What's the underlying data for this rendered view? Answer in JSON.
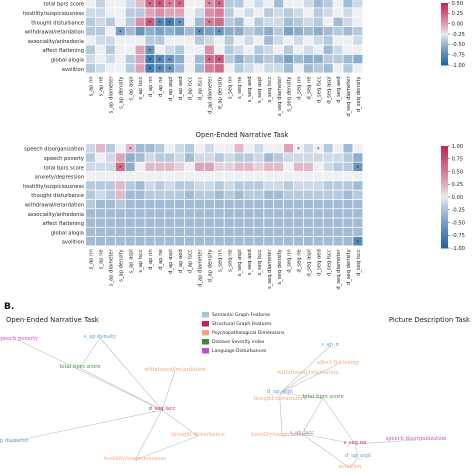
{
  "panel_b_label": "B.",
  "chart_data": [
    {
      "type": "heatmap",
      "title": "",
      "rows": [
        "total bprs score",
        "hostility/suspiciousness",
        "thought disturbance",
        "withdrawal/retardation",
        "associality/anhedonia",
        "affect flattening",
        "global alogia",
        "avolition"
      ],
      "columns": [
        "s_ap nn",
        "s_ap ne",
        "s_ap diameter",
        "s_ap density",
        "s_ap aspl",
        "s_ap lscc",
        "d_ap nn",
        "d_ap ne",
        "d_ap aspl",
        "d_ap aed",
        "d_ap lscc",
        "d_ap lscc",
        "d_ap diameter",
        "d_ap density",
        "s_seq nn",
        "s_seq ne",
        "s_seq aed",
        "s_seq aspl",
        "s_seq lscc",
        "s_seq diameter",
        "s_seq density",
        "d_seq nn",
        "d_seq ne",
        "d_seq lscc",
        "d_seq aspl",
        "d_seq aed",
        "d_seq diameter",
        "d_seq density"
      ],
      "values": [
        [
          0,
          -0.15,
          0,
          0,
          -0.1,
          0.2,
          0.6,
          0.7,
          0.5,
          0.6,
          0,
          0,
          0.4,
          0.6,
          -0.2,
          -0.2,
          0,
          -0.1,
          0,
          -0.3,
          0,
          0,
          -0.1,
          -0.3,
          -0.2,
          0,
          -0.3,
          -0.1
        ],
        [
          -0.1,
          -0.1,
          0,
          0,
          -0.2,
          -0.2,
          0.3,
          0.4,
          0.3,
          0.3,
          0,
          -0.1,
          0.4,
          0.5,
          -0.2,
          0,
          -0.1,
          0,
          -0.2,
          -0.1,
          -0.2,
          -0.1,
          0,
          -0.2,
          -0.1,
          0,
          -0.1,
          0
        ],
        [
          -0.2,
          -0.1,
          -0.2,
          0,
          -0.2,
          0.4,
          0.7,
          -0.7,
          -0.8,
          -0.6,
          0,
          -0.3,
          0.5,
          0.6,
          -0.2,
          -0.3,
          0,
          -0.2,
          -0.1,
          -0.1,
          -0.3,
          -0.2,
          -0.1,
          -0.2,
          0,
          -0.3,
          -0.1,
          0
        ],
        [
          -0.2,
          -0.2,
          0,
          -0.5,
          -0.3,
          -0.6,
          -0.4,
          -0.5,
          -0.4,
          -0.5,
          -0.3,
          -0.6,
          -0.5,
          -0.6,
          -0.4,
          -0.4,
          -0.2,
          -0.3,
          -0.4,
          -0.2,
          -0.5,
          -0.4,
          -0.3,
          -0.4,
          -0.3,
          -0.2,
          -0.3,
          -0.2
        ],
        [
          0,
          -0.1,
          -0.1,
          0,
          0,
          0,
          -0.2,
          -0.2,
          0,
          0,
          0,
          -0.2,
          -0.1,
          0,
          -0.2,
          0,
          -0.1,
          0,
          -0.3,
          -0.1,
          0,
          -0.1,
          0,
          -0.1,
          -0.2,
          0,
          0,
          -0.1
        ],
        [
          -0.2,
          0,
          -0.2,
          0,
          0,
          0.3,
          -0.6,
          0,
          -0.1,
          -0.2,
          0,
          0,
          0.4,
          0,
          -0.2,
          -0.1,
          0,
          -0.2,
          -0.1,
          0,
          -0.2,
          0,
          -0.1,
          0,
          -0.3,
          -0.1,
          0,
          0
        ],
        [
          -0.1,
          0,
          -0.1,
          0,
          -0.2,
          0.3,
          -0.8,
          -0.7,
          -0.6,
          -0.4,
          0,
          -0.3,
          0.6,
          0.7,
          -0.2,
          -0.4,
          -0.2,
          -0.3,
          -0.2,
          -0.3,
          -0.5,
          -0.3,
          -0.4,
          -0.4,
          -0.2,
          -0.2,
          -0.3,
          -0.4
        ],
        [
          -0.2,
          -0.1,
          0,
          0,
          -0.2,
          0.3,
          -0.8,
          -0.7,
          -0.6,
          -0.3,
          0,
          -0.3,
          0.5,
          0.6,
          0,
          -0.2,
          -0.1,
          0,
          -0.1,
          -0.1,
          -0.3,
          0,
          -0.3,
          -0.2,
          -0.3,
          0,
          -0.2,
          0
        ]
      ],
      "stars": [
        [
          6,
          0
        ],
        [
          7,
          0
        ],
        [
          8,
          0
        ],
        [
          9,
          0
        ],
        [
          12,
          0
        ],
        [
          13,
          0
        ],
        [
          6,
          2
        ],
        [
          7,
          2
        ],
        [
          8,
          2
        ],
        [
          9,
          2
        ],
        [
          12,
          2
        ],
        [
          3,
          3
        ],
        [
          11,
          3
        ],
        [
          13,
          3
        ],
        [
          6,
          5
        ],
        [
          6,
          6
        ],
        [
          7,
          6
        ],
        [
          8,
          6
        ],
        [
          12,
          6
        ],
        [
          13,
          6
        ],
        [
          6,
          7
        ],
        [
          7,
          7
        ],
        [
          8,
          7
        ]
      ],
      "colorbar": {
        "ticks": [
          "0.50",
          "0.25",
          "0.00",
          "-0.25",
          "-0.50",
          "-0.75",
          "-1.00"
        ],
        "range": [
          -1,
          1
        ]
      }
    },
    {
      "type": "heatmap",
      "title": "Open-Ended Narrative Task",
      "rows": [
        "speech disorganization",
        "speech poverty",
        "total bprs score",
        "anxiety/depression",
        "hostility/suspiciousness",
        "thought disturbance",
        "withdrawal/retardation",
        "associality/anhedonia",
        "affect flattening",
        "global alogia",
        "avolition"
      ],
      "columns": [
        "s_ap nn",
        "s_ap ne",
        "s_ap diameter",
        "s_ap density",
        "s_ap aspl",
        "s_ap lscc",
        "d_ap nn",
        "d_ap ne",
        "d_ap aspl",
        "d_ap aed",
        "d_ap lscc",
        "d_ap diameter",
        "d_ap density",
        "s_seq nn",
        "s_seq ne",
        "s_seq aspl",
        "s_seq aed",
        "s_seq lscc",
        "s_seq diameter",
        "s_seq density",
        "d_seq nn",
        "d_seq ne",
        "d_seq aspl",
        "d_seq aed",
        "d_seq lscc",
        "d_seq diameter",
        "d_seq density",
        "d_seq lscc"
      ],
      "values": [
        [
          -0.1,
          0.2,
          -0.2,
          0,
          0.2,
          -0.3,
          -0.3,
          -0.2,
          0,
          -0.1,
          -0.2,
          0,
          -0.1,
          0,
          0,
          0.2,
          0,
          -0.1,
          0,
          0,
          0.3,
          0,
          -0.1,
          0,
          -0.2,
          0,
          -0.3,
          0
        ],
        [
          -0.2,
          0,
          -0.1,
          0.3,
          -0.4,
          -0.3,
          -0.1,
          -0.2,
          -0.2,
          -0.1,
          -0.3,
          -0.1,
          -0.1,
          -0.2,
          -0.1,
          -0.2,
          -0.2,
          -0.1,
          -0.3,
          -0.2,
          -0.1,
          -0.1,
          -0.1,
          -0.1,
          -0.1,
          -0.1,
          -0.2,
          -0.4
        ],
        [
          -0.1,
          -0.1,
          -0.1,
          0.6,
          -0.4,
          0,
          0.2,
          0.2,
          0.2,
          0.1,
          0,
          0.3,
          0.3,
          0.1,
          0.1,
          0.2,
          0.2,
          0.1,
          0.2,
          0.2,
          0,
          0.2,
          0.2,
          0,
          -0.1,
          -0.2,
          -0.2,
          -0.6
        ],
        [
          0,
          0,
          0,
          0,
          0,
          0,
          0,
          0,
          0,
          0,
          0,
          0,
          0,
          0,
          0,
          0,
          0,
          0,
          0,
          0,
          0,
          0,
          0,
          0,
          0,
          0,
          0,
          0
        ],
        [
          -0.2,
          -0.2,
          -0.2,
          0.2,
          -0.2,
          -0.3,
          -0.1,
          -0.2,
          -0.1,
          -0.2,
          -0.2,
          -0.1,
          -0.1,
          -0.2,
          -0.1,
          -0.2,
          -0.2,
          -0.2,
          -0.1,
          -0.1,
          -0.2,
          -0.1,
          -0.1,
          -0.1,
          -0.2,
          -0.2,
          -0.2,
          -0.3
        ],
        [
          -0.2,
          -0.1,
          -0.2,
          0.2,
          -0.3,
          -0.3,
          -0.2,
          -0.2,
          -0.2,
          -0.2,
          -0.3,
          -0.2,
          -0.2,
          -0.3,
          -0.2,
          -0.3,
          -0.2,
          -0.2,
          -0.3,
          -0.3,
          -0.2,
          -0.2,
          -0.2,
          -0.2,
          -0.2,
          -0.2,
          -0.3,
          -0.2
        ],
        [
          -0.2,
          -0.3,
          -0.3,
          -0.2,
          -0.3,
          -0.3,
          -0.3,
          -0.3,
          -0.3,
          -0.3,
          -0.3,
          -0.3,
          -0.3,
          -0.3,
          -0.3,
          -0.3,
          -0.3,
          -0.3,
          -0.3,
          -0.3,
          -0.3,
          -0.3,
          -0.3,
          -0.3,
          -0.3,
          -0.3,
          -0.3,
          -0.3
        ],
        [
          -0.3,
          -0.3,
          -0.3,
          -0.3,
          -0.3,
          -0.3,
          -0.3,
          -0.3,
          -0.3,
          -0.3,
          -0.3,
          -0.3,
          -0.3,
          -0.3,
          -0.3,
          -0.3,
          -0.3,
          -0.3,
          -0.3,
          -0.3,
          -0.3,
          -0.3,
          -0.3,
          -0.3,
          -0.3,
          -0.3,
          -0.3,
          -0.3
        ],
        [
          -0.3,
          -0.3,
          -0.3,
          -0.3,
          -0.3,
          -0.3,
          -0.3,
          -0.3,
          -0.3,
          -0.3,
          -0.3,
          -0.3,
          -0.3,
          -0.3,
          -0.3,
          -0.3,
          -0.3,
          -0.3,
          -0.3,
          -0.3,
          -0.3,
          -0.3,
          -0.3,
          -0.3,
          -0.3,
          -0.3,
          -0.3,
          -0.3
        ],
        [
          -0.3,
          -0.3,
          -0.3,
          -0.3,
          -0.3,
          -0.3,
          -0.3,
          -0.3,
          -0.3,
          -0.3,
          -0.3,
          -0.3,
          -0.3,
          -0.3,
          -0.3,
          -0.3,
          -0.3,
          -0.3,
          -0.3,
          -0.3,
          -0.3,
          -0.3,
          -0.3,
          -0.3,
          -0.3,
          -0.3,
          -0.3,
          -0.3
        ],
        [
          -0.3,
          -0.3,
          -0.3,
          -0.3,
          -0.3,
          -0.3,
          -0.3,
          -0.3,
          -0.3,
          -0.3,
          -0.3,
          -0.3,
          -0.3,
          -0.3,
          -0.3,
          -0.3,
          -0.3,
          -0.3,
          -0.3,
          -0.3,
          -0.3,
          -0.3,
          -0.3,
          -0.3,
          -0.3,
          -0.3,
          -0.3,
          -0.7
        ]
      ],
      "stars": [
        [
          4,
          0
        ],
        [
          21,
          0
        ],
        [
          23,
          0
        ],
        [
          3,
          2
        ],
        [
          27,
          2
        ],
        [
          27,
          10
        ]
      ],
      "colorbar": {
        "ticks": [
          "1.00",
          "0.75",
          "0.50",
          "0.25",
          "0.00",
          "-0.25",
          "-0.50",
          "-0.75",
          "-1.00"
        ],
        "range": [
          -1,
          1
        ]
      }
    }
  ],
  "network": {
    "left_title": "Open-Ended Narrative Task",
    "right_title": "Picture Description Task",
    "legend": [
      {
        "label": "Semantic Graph Features",
        "color": "#9ec9e2"
      },
      {
        "label": "Structural Graph Features",
        "color": "#c0264b"
      },
      {
        "label": "Psychopathological Dimensions",
        "color": "#f0a77e"
      },
      {
        "label": "Disease Severity index",
        "color": "#3d8a43"
      },
      {
        "label": "Language Disturbances",
        "color": "#c54fc8"
      }
    ],
    "nodes_left": [
      {
        "label": "speech poverty",
        "color": "#c54fc8"
      },
      {
        "label": "s_ap density",
        "color": "#5fa0d8"
      },
      {
        "label": "total bprs score",
        "color": "#3d8a43"
      },
      {
        "label": "withdrawal/retardation",
        "color": "#f0a77e"
      },
      {
        "label": "d_seq lscc",
        "color": "#c0264b"
      },
      {
        "label": "thought disturbance",
        "color": "#f0a77e"
      },
      {
        "label": "s_ap diameter",
        "color": "#5fa0d8"
      },
      {
        "label": "hostility/suspiciousness",
        "color": "#f0a77e"
      }
    ],
    "nodes_right": [
      {
        "label": "s_ap_n",
        "color": "#5fa0d8"
      },
      {
        "label": "affect flattening",
        "color": "#f0a77e"
      },
      {
        "label": "withdrawal/retardation",
        "color": "#f0a77e"
      },
      {
        "label": "d_ap_aspl",
        "color": "#5fa0d8"
      },
      {
        "label": "thought disturbance",
        "color": "#f0a77e"
      },
      {
        "label": "total bprs score",
        "color": "#3d8a43"
      },
      {
        "label": "hostility/suspiciousness",
        "color": "#f0a77e"
      },
      {
        "label": "s_ap_lscc",
        "color": "#5fa0d8"
      },
      {
        "label": "s_seq nn",
        "color": "#c0264b"
      },
      {
        "label": "speech disorganization",
        "color": "#c54fc8"
      },
      {
        "label": "d_ap_aspl",
        "color": "#5fa0d8"
      },
      {
        "label": "avolition",
        "color": "#f0a77e"
      }
    ]
  }
}
